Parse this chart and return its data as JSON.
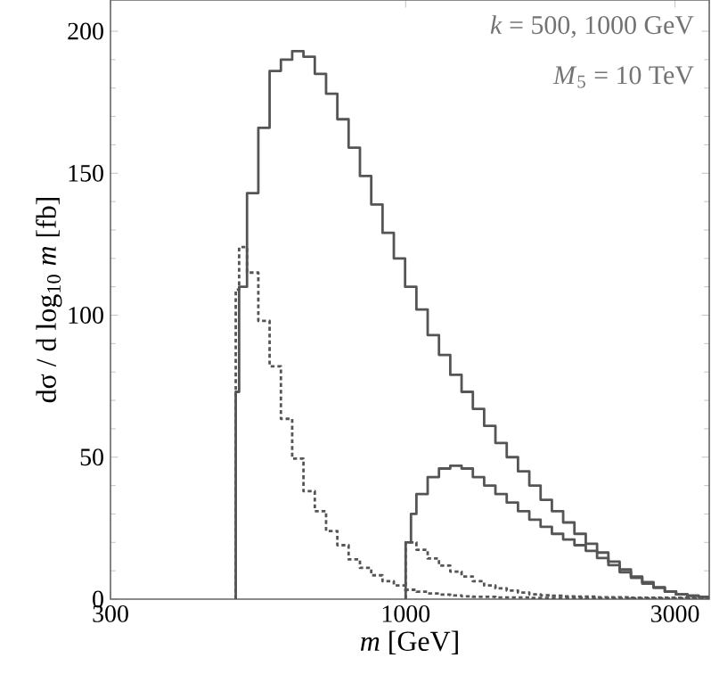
{
  "chart_data": {
    "type": "step",
    "xlabel": "*m*  [GeV]",
    "ylabel": "dσ / d log$_{10}$ *m*  [fb]",
    "log": "x",
    "xlim": [
      300,
      3450
    ],
    "xticks": [
      300,
      1000,
      3000
    ],
    "ylim": [
      0,
      211
    ],
    "yticks": [
      0,
      50,
      100,
      150,
      200
    ],
    "grid": false,
    "marker": "none",
    "annotations": [
      "*k* = 500, 1000 GeV",
      "*M*$_{5}$ = 10 TeV"
    ],
    "series": [
      {
        "color": "#555555",
        "line_style": "solid",
        "x": [
          500,
          500,
          507,
          523.6,
          548.3,
          574.1,
          601.2,
          629.5,
          659.2,
          690.3,
          722.8,
          756.9,
          792.5,
          829.9,
          869.0,
          910.0,
          952.9,
          997.7,
          1044.8,
          1094.0,
          1145.6,
          1199.6,
          1256.2,
          1315.4,
          1377.4,
          1442.3,
          1510.3,
          1581.5,
          1656.0,
          1734.0,
          1815.9,
          1901.4,
          1991.0,
          2084.9,
          2183.2,
          2286.1,
          2393.8,
          2506.7,
          2624.8,
          2748.6,
          2878.1,
          3013.8,
          3155.9,
          3304.7,
          3450
        ],
        "values": [
          0,
          73,
          110,
          143,
          166,
          186,
          190,
          193,
          191,
          185,
          178,
          169,
          159,
          149,
          139,
          129,
          120,
          110,
          102,
          93,
          86,
          79,
          73,
          67,
          61,
          55,
          50,
          45,
          40,
          35,
          31,
          27,
          23,
          19.5,
          16.4,
          13.2,
          10.5,
          8,
          6,
          4.2,
          2.7,
          1.7,
          1.2,
          0.8,
          0.8
        ]
      },
      {
        "color": "#555555",
        "line_style": "solid",
        "x": [
          1000,
          1000,
          1022,
          1044.8,
          1094.0,
          1145.6,
          1199.6,
          1256.2,
          1315.4,
          1377.4,
          1442.3,
          1510.3,
          1581.5,
          1656.0,
          1734.0,
          1815.9,
          1901.4,
          1991.0,
          2084.9,
          2183.2,
          2286.1,
          2393.8,
          2506.7,
          2624.8,
          2748.6,
          2878.1,
          3013.8,
          3155.9,
          3304.7,
          3450
        ],
        "values": [
          0,
          20,
          30,
          37,
          43,
          46,
          47,
          46,
          43,
          40,
          37,
          34,
          31,
          28,
          25.5,
          23,
          21,
          19,
          17,
          14.5,
          12,
          9.5,
          7.5,
          5.5,
          4,
          2.6,
          1.7,
          1.2,
          0.8,
          0.8
        ]
      },
      {
        "color": "#555555",
        "line_style": "dotted",
        "x": [
          500,
          500,
          507,
          523.6,
          548.3,
          574.1,
          601.2,
          629.5,
          659.2,
          690.3,
          722.8,
          756.9,
          792.5,
          829.9,
          869.0,
          910.0,
          952.9,
          997.7,
          1044.8,
          1094.0,
          1145.6,
          1199.6,
          1256.2,
          1315.4,
          1442.3,
          1656.0,
          2084.9,
          3450
        ],
        "values": [
          0,
          109,
          124,
          115,
          98,
          82,
          63.5,
          49.5,
          38,
          31,
          24,
          19,
          14,
          11,
          8.4,
          6.3,
          4.8,
          3.3,
          2.6,
          2,
          1.6,
          1.3,
          1,
          0.8,
          0.6,
          0.4,
          0.3,
          0.3
        ]
      },
      {
        "color": "#555555",
        "line_style": "dotted",
        "x": [
          1000,
          1000,
          1044.8,
          1094.0,
          1145.6,
          1199.6,
          1256.2,
          1315.4,
          1377.4,
          1442.3,
          1510.3,
          1581.5,
          1656.0,
          1734.0,
          1815.9,
          1901.4,
          1991.0,
          2183.2,
          2506.7,
          3450
        ],
        "values": [
          0,
          20,
          17.4,
          14.3,
          11.8,
          9.7,
          8,
          6.3,
          4.8,
          3.8,
          3,
          2.3,
          1.7,
          1.4,
          1.2,
          1,
          0.9,
          0.7,
          0.5,
          0.5
        ]
      }
    ]
  }
}
